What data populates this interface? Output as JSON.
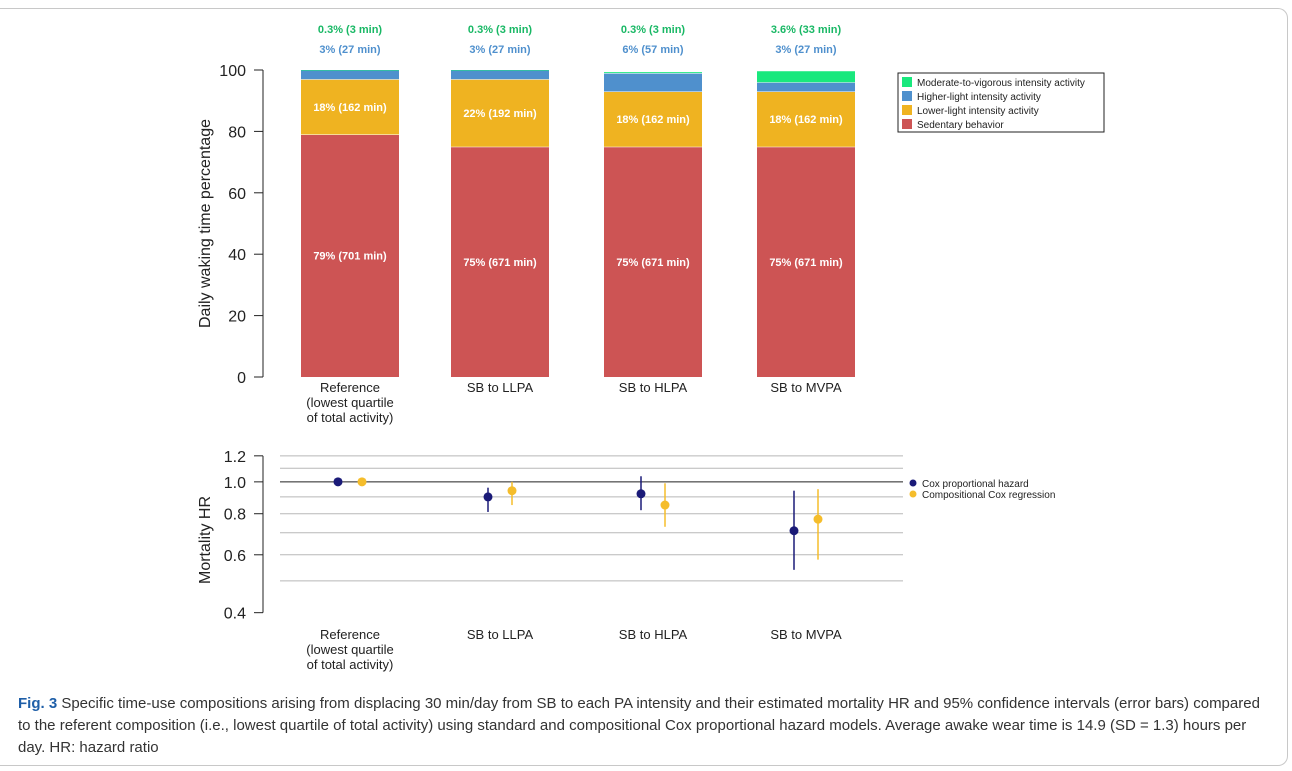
{
  "chart_data": [
    {
      "type": "bar",
      "stacked": true,
      "ylabel": "Daily waking time percentage",
      "ylim": [
        0,
        100
      ],
      "yticks": [
        0,
        20,
        40,
        60,
        80,
        100
      ],
      "categories": [
        [
          "Reference",
          "(lowest quartile",
          "of total activity)"
        ],
        [
          "SB to LLPA"
        ],
        [
          "SB to HLPA"
        ],
        [
          "SB to MVPA"
        ]
      ],
      "series": [
        {
          "name": "Sedentary behavior",
          "color": "#cd5454",
          "values": [
            79,
            75,
            75,
            75
          ],
          "labels": [
            "79% (701 min)",
            "75% (671 min)",
            "75% (671 min)",
            "75% (671 min)"
          ]
        },
        {
          "name": "Lower-light intensity activity",
          "color": "#efb321",
          "values": [
            18,
            22,
            18,
            18
          ],
          "labels": [
            "18% (162 min)",
            "22% (192 min)",
            "18% (162 min)",
            "18% (162 min)"
          ]
        },
        {
          "name": "Higher-light intensity activity",
          "color": "#4f90cd",
          "values": [
            3,
            3,
            6,
            3
          ],
          "labels": [
            "3% (27 min)",
            "3% (27 min)",
            "6% (57 min)",
            "3% (27 min)"
          ]
        },
        {
          "name": "Moderate-to-vigorous intensity activity",
          "color": "#19e87d",
          "values": [
            0.3,
            0.3,
            0.3,
            3.6
          ],
          "labels": [
            "0.3% (3 min)",
            "0.3% (3 min)",
            "0.3% (3 min)",
            "3.6% (33 min)"
          ]
        }
      ],
      "legend_position": "top-right",
      "grid": false
    },
    {
      "type": "scatter",
      "error_bars": true,
      "ylabel": "Mortality HR",
      "y_scale": "log",
      "ylim": [
        0.38,
        1.25
      ],
      "yticks": [
        0.4,
        0.6,
        0.8,
        1.0,
        1.2
      ],
      "ytick_labels": [
        "0.4",
        "0.6",
        "0.8",
        "1.0",
        "1.2"
      ],
      "gridlines": [
        0.5,
        0.6,
        0.7,
        0.8,
        0.9,
        1.1,
        1.2
      ],
      "reference_line": 1.0,
      "categories": [
        [
          "Reference",
          "(lowest quartile",
          "of total activity)"
        ],
        [
          "SB to LLPA"
        ],
        [
          "SB to HLPA"
        ],
        [
          "SB to MVPA"
        ]
      ],
      "series": [
        {
          "name": "Cox proportional hazard",
          "color": "#1a1a78",
          "values": [
            1.0,
            0.9,
            0.92,
            0.71
          ],
          "lower": [
            1.0,
            0.81,
            0.82,
            0.54
          ],
          "upper": [
            1.0,
            0.96,
            1.04,
            0.94
          ]
        },
        {
          "name": "Compositional Cox regression",
          "color": "#f5bd2b",
          "values": [
            1.0,
            0.94,
            0.85,
            0.77
          ],
          "lower": [
            1.0,
            0.85,
            0.73,
            0.58
          ],
          "upper": [
            1.0,
            1.0,
            0.99,
            0.95
          ]
        }
      ],
      "legend_position": "right"
    }
  ],
  "caption": {
    "label": "Fig. 3",
    "text": " Specific time-use compositions arising from displacing 30 min/day from SB to each PA intensity and their estimated mortality HR and 95% confidence intervals (error bars) compared to the referent composition (i.e., lowest quartile of total activity) using standard and compositional Cox proportional hazard models. Average awake wear time is 14.9 (SD = 1.3) hours per day. HR: hazard ratio"
  }
}
